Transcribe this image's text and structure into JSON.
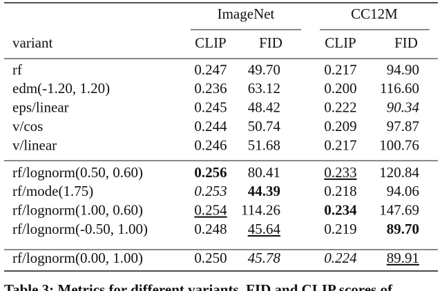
{
  "table": {
    "groups": [
      "ImageNet",
      "CC12M"
    ],
    "header": [
      "variant",
      "CLIP",
      "FID",
      "CLIP",
      "FID"
    ],
    "sections": [
      {
        "rows": [
          [
            "rf",
            "0.247",
            "49.70",
            "0.217",
            "94.90"
          ],
          [
            "edm(-1.20, 1.20)",
            "0.236",
            "63.12",
            "0.200",
            "116.60"
          ],
          [
            "eps/linear",
            "0.245",
            "48.42",
            "0.222",
            "90.34"
          ],
          [
            "v/cos",
            "0.244",
            "50.74",
            "0.209",
            "97.87"
          ],
          [
            "v/linear",
            "0.246",
            "51.68",
            "0.217",
            "100.76"
          ]
        ],
        "styles": [
          [
            "plain",
            "plain",
            "plain",
            "plain",
            "plain"
          ],
          [
            "plain",
            "plain",
            "plain",
            "plain",
            "plain"
          ],
          [
            "plain",
            "plain",
            "plain",
            "plain",
            "italic"
          ],
          [
            "plain",
            "plain",
            "plain",
            "plain",
            "plain"
          ],
          [
            "plain",
            "plain",
            "plain",
            "plain",
            "plain"
          ]
        ]
      },
      {
        "rows": [
          [
            "rf/lognorm(0.50, 0.60)",
            "0.256",
            "80.41",
            "0.233",
            "120.84"
          ],
          [
            "rf/mode(1.75)",
            "0.253",
            "44.39",
            "0.218",
            "94.06"
          ],
          [
            "rf/lognorm(1.00, 0.60)",
            "0.254",
            "114.26",
            "0.234",
            "147.69"
          ],
          [
            "rf/lognorm(-0.50, 1.00)",
            "0.248",
            "45.64",
            "0.219",
            "89.70"
          ]
        ],
        "styles": [
          [
            "plain",
            "bold",
            "plain",
            "underline",
            "plain"
          ],
          [
            "plain",
            "italic",
            "bold",
            "plain",
            "plain"
          ],
          [
            "plain",
            "underline",
            "plain",
            "bold",
            "plain"
          ],
          [
            "plain",
            "plain",
            "underline",
            "plain",
            "bold"
          ]
        ]
      },
      {
        "rows": [
          [
            "rf/lognorm(0.00, 1.00)",
            "0.250",
            "45.78",
            "0.224",
            "89.91"
          ]
        ],
        "styles": [
          [
            "plain",
            "plain",
            "italic",
            "italic",
            "underline"
          ]
        ]
      }
    ],
    "caption": "Table 3: Metrics for different variants. FID and CLIP scores of"
  }
}
